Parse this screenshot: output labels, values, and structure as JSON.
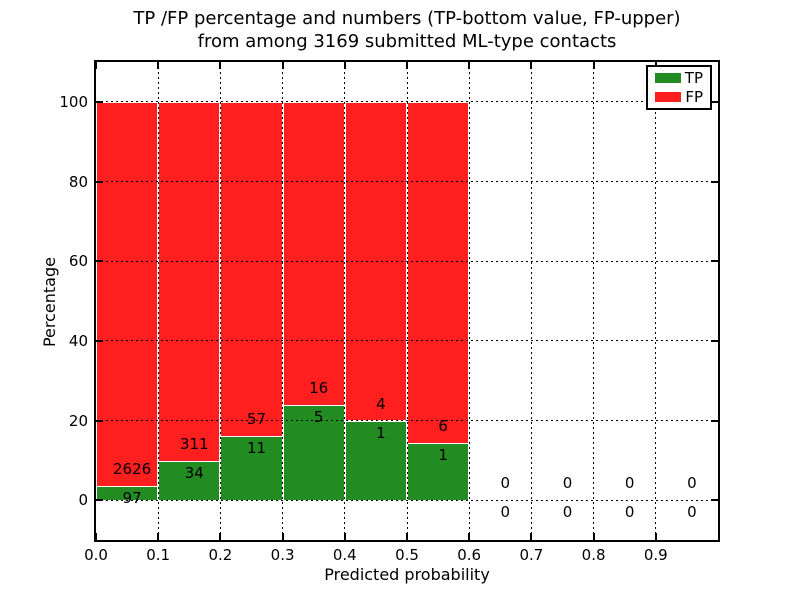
{
  "chart_data": {
    "type": "bar",
    "stacked": true,
    "title_line1": "TP /FP percentage and numbers (TP-bottom value, FP-upper)",
    "title_line2": "from among 3169 submitted ML-type contacts",
    "xlabel": "Predicted probability",
    "ylabel": "Percentage",
    "x_ticks": [
      "0.0",
      "0.1",
      "0.2",
      "0.3",
      "0.4",
      "0.5",
      "0.6",
      "0.7",
      "0.8",
      "0.9"
    ],
    "y_ticks": [
      0,
      20,
      40,
      60,
      80,
      100
    ],
    "xlim": [
      0.0,
      1.0
    ],
    "ylim": [
      -10,
      110
    ],
    "bin_width": 0.1,
    "grid": true,
    "legend_position": "upper right",
    "note": "Each bar stacks TP% (bottom, green) and FP% (upper, red) to 100%; numbers shown are raw counts per predicted-probability bin",
    "bins": [
      {
        "x0": 0.0,
        "tp": 97,
        "fp": 2626
      },
      {
        "x0": 0.1,
        "tp": 34,
        "fp": 311
      },
      {
        "x0": 0.2,
        "tp": 11,
        "fp": 57
      },
      {
        "x0": 0.3,
        "tp": 5,
        "fp": 16
      },
      {
        "x0": 0.4,
        "tp": 1,
        "fp": 4
      },
      {
        "x0": 0.5,
        "tp": 1,
        "fp": 6
      },
      {
        "x0": 0.6,
        "tp": 0,
        "fp": 0
      },
      {
        "x0": 0.7,
        "tp": 0,
        "fp": 0
      },
      {
        "x0": 0.8,
        "tp": 0,
        "fp": 0
      },
      {
        "x0": 0.9,
        "tp": 0,
        "fp": 0
      }
    ],
    "legend": [
      {
        "label": "TP",
        "color": "#228b22"
      },
      {
        "label": "FP",
        "color": "#ff1f1f"
      }
    ],
    "colors": {
      "tp": "#228b22",
      "fp": "#ff1f1f",
      "grid": "#000000",
      "spine": "#000000",
      "background": "#ffffff"
    }
  }
}
